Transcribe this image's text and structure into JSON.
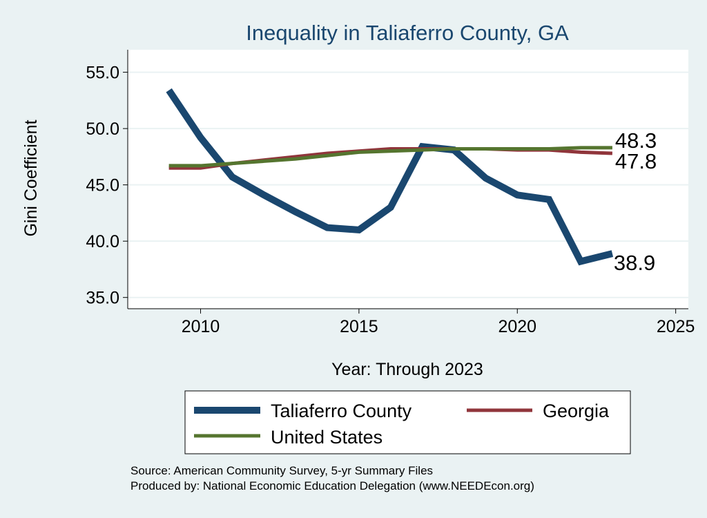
{
  "chart_data": {
    "type": "line",
    "title": "Inequality in Taliaferro County, GA",
    "xlabel": "Year: Through 2023",
    "ylabel": "Gini Coefficient",
    "xlim": [
      2007.7,
      2025.4
    ],
    "ylim": [
      34.0,
      57.0
    ],
    "xticks": [
      2010,
      2015,
      2020,
      2025
    ],
    "yticks": [
      "35.0",
      "40.0",
      "45.0",
      "50.0",
      "55.0"
    ],
    "grid": true,
    "legend_placement": "bottom",
    "x": [
      2009,
      2010,
      2011,
      2012,
      2013,
      2014,
      2015,
      2016,
      2017,
      2018,
      2019,
      2020,
      2021,
      2022,
      2023
    ],
    "series": [
      {
        "name": "Taliaferro County",
        "color": "#1a476f",
        "values": [
          53.4,
          49.2,
          45.7,
          44.1,
          42.6,
          41.2,
          41.0,
          43.0,
          48.4,
          48.1,
          45.6,
          44.1,
          43.7,
          38.2,
          38.9
        ],
        "end_label": "38.9"
      },
      {
        "name": "Georgia",
        "color": "#90353b",
        "values": [
          46.5,
          46.5,
          46.9,
          47.2,
          47.5,
          47.8,
          48.0,
          48.2,
          48.2,
          48.2,
          48.2,
          48.1,
          48.1,
          47.9,
          47.8
        ],
        "end_label": "47.8"
      },
      {
        "name": "United States",
        "color": "#55752f",
        "values": [
          46.7,
          46.7,
          46.9,
          47.1,
          47.3,
          47.6,
          47.9,
          48.0,
          48.1,
          48.2,
          48.2,
          48.2,
          48.2,
          48.3,
          48.3
        ],
        "end_label": "48.3"
      }
    ]
  },
  "footer": {
    "source": "Source: American Community Survey, 5-yr Summary Files",
    "produced": "Produced by: National Economic Education Delegation (www.NEEDEcon.org)"
  }
}
